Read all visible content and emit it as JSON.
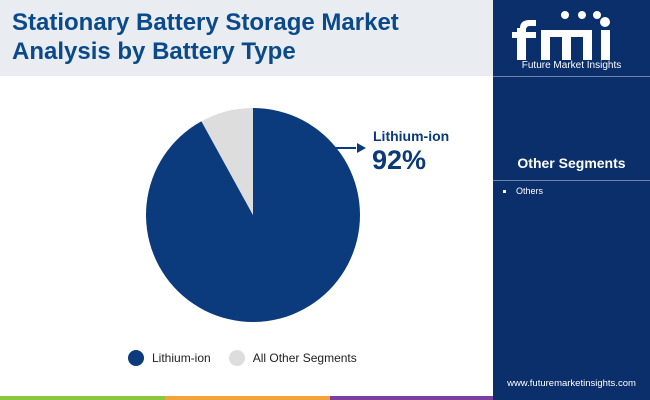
{
  "title": "Stationary Battery Storage Market Analysis by Battery Type",
  "logo": {
    "text": "fmi",
    "subtitle": "Future Market Insights"
  },
  "sidebar": {
    "heading": "Other Segments",
    "items": [
      "Others"
    ],
    "url": "www.futuremarketinsights.com"
  },
  "callout": {
    "label": "Lithium-ion",
    "value": "92%"
  },
  "colors": {
    "lithium": "#0b3b7c",
    "other": "#dddddd",
    "title": "#0a4a8a",
    "sidebar": "#0b2f6b"
  },
  "chart_data": {
    "type": "pie",
    "title": "",
    "categories": [
      "Lithium-ion",
      "All Other Segments"
    ],
    "values": [
      92,
      8
    ],
    "legend_position": "bottom",
    "colors": [
      "#0b3b7c",
      "#dddddd"
    ]
  }
}
